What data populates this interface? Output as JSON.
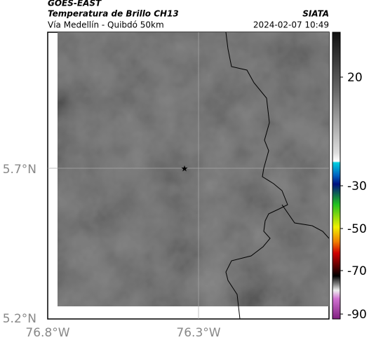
{
  "header": {
    "title": "GOES-EAST",
    "subtitle": "Temperatura de Brillo CH13",
    "location": "Vía Medellín - Quibdó 50km",
    "source": "SIATA",
    "datetime": "2024-02-07 10:49"
  },
  "map": {
    "lat_labels": [
      "5.7°N",
      "5.2°N"
    ],
    "lon_labels": [
      "76.8°W",
      "76.3°W"
    ]
  },
  "colorbar": {
    "labels": [
      "20",
      "-30",
      "-50",
      "-70",
      "-90"
    ]
  }
}
